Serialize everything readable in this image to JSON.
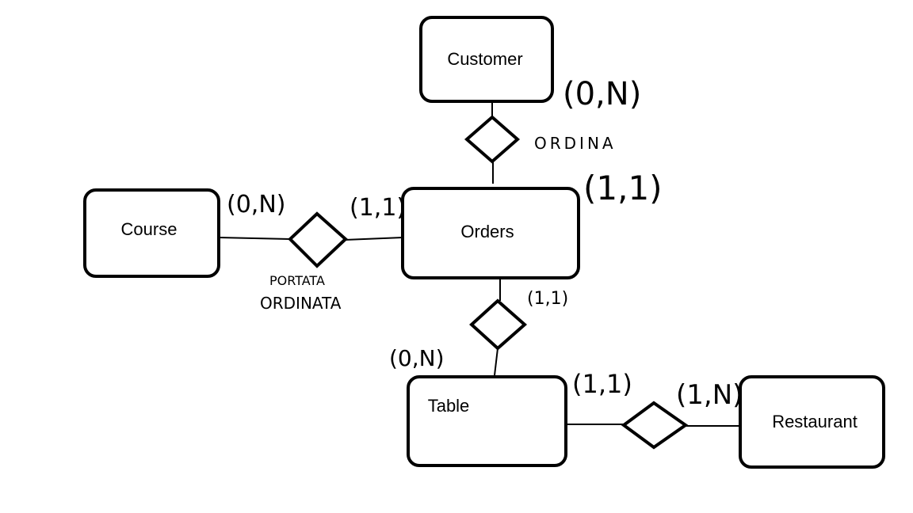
{
  "entities": {
    "customer": "Customer",
    "orders": "Orders",
    "course": "Course",
    "table": "Table",
    "restaurant": "Restaurant"
  },
  "relationships": {
    "ordina": "ORDINA",
    "portata_ordinata_line1": "PORTATA",
    "portata_ordinata_line2": "ORDINATA"
  },
  "cardinalities": {
    "customer_ordina": "(0,N)",
    "orders_ordina": "(1,1)",
    "course_portata": "(0,N)",
    "orders_portata": "(1,1)",
    "orders_table_rel": "(1,1)",
    "table_orders_rel": "(0,N)",
    "table_restaurant_rel": "(1,1)",
    "restaurant_table_rel": "(1,N)"
  }
}
